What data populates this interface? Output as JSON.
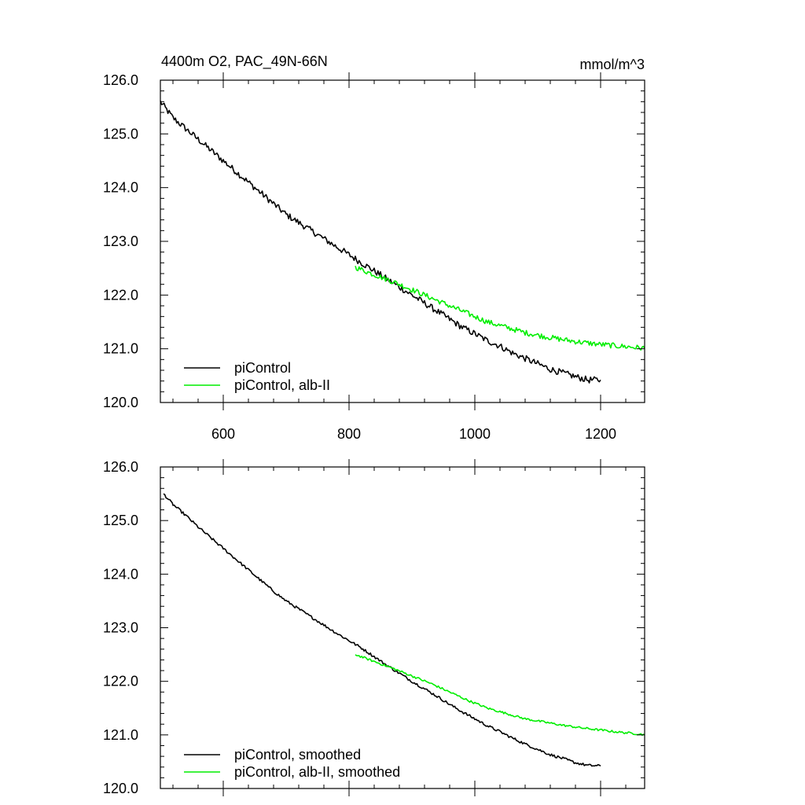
{
  "colors": {
    "piControl": "#000000",
    "alb_II": "#00ee00",
    "background": "#ffffff"
  },
  "chart_data": [
    {
      "type": "line",
      "title": "4400m O2, PAC_49N-66N",
      "units": "mmol/m^3",
      "xlim": [
        500,
        1270
      ],
      "ylim": [
        120.0,
        126.0
      ],
      "xticks": [
        600,
        800,
        1000,
        1200
      ],
      "xtick_labels": [
        "600",
        "800",
        "1000",
        "1200"
      ],
      "yticks": [
        120.0,
        121.0,
        122.0,
        123.0,
        124.0,
        125.0,
        126.0
      ],
      "ytick_labels": [
        "120.0",
        "121.0",
        "122.0",
        "123.0",
        "124.0",
        "125.0",
        "126.0"
      ],
      "legend_position": "bottom-left",
      "series": [
        {
          "name": "piControl",
          "color": "#000000",
          "x": [
            500,
            520,
            540,
            560,
            580,
            600,
            620,
            640,
            660,
            680,
            700,
            720,
            740,
            760,
            780,
            800,
            820,
            840,
            860,
            880,
            900,
            920,
            940,
            960,
            980,
            1000,
            1020,
            1040,
            1060,
            1080,
            1100,
            1120,
            1140,
            1160,
            1180,
            1200
          ],
          "y": [
            125.6,
            125.3,
            125.1,
            124.9,
            124.7,
            124.5,
            124.3,
            124.1,
            123.9,
            123.7,
            123.5,
            123.35,
            123.2,
            123.05,
            122.9,
            122.75,
            122.6,
            122.45,
            122.3,
            122.15,
            122.0,
            121.85,
            121.7,
            121.55,
            121.4,
            121.28,
            121.15,
            121.05,
            120.92,
            120.82,
            120.72,
            120.62,
            120.55,
            120.48,
            120.42,
            120.42
          ],
          "noise_amplitude": 0.06
        },
        {
          "name": "piControl, alb-II",
          "color": "#00ee00",
          "x": [
            810,
            840,
            870,
            900,
            930,
            960,
            990,
            1020,
            1050,
            1080,
            1110,
            1140,
            1170,
            1200,
            1230,
            1260,
            1270
          ],
          "y": [
            122.52,
            122.38,
            122.25,
            122.1,
            121.95,
            121.8,
            121.65,
            121.5,
            121.4,
            121.3,
            121.23,
            121.17,
            121.12,
            121.08,
            121.05,
            121.02,
            121.01
          ],
          "noise_amplitude": 0.05
        }
      ]
    },
    {
      "type": "line",
      "xlim": [
        500,
        1270
      ],
      "ylim": [
        120.0,
        126.0
      ],
      "xticks": [
        600,
        800,
        1000,
        1200
      ],
      "yticks": [
        120.0,
        121.0,
        122.0,
        123.0,
        124.0,
        125.0,
        126.0
      ],
      "ytick_labels": [
        "120.0",
        "121.0",
        "122.0",
        "123.0",
        "124.0",
        "125.0",
        "126.0"
      ],
      "legend_position": "bottom-left",
      "series": [
        {
          "name": "piControl, smoothed",
          "color": "#000000",
          "x": [
            505,
            520,
            540,
            560,
            580,
            600,
            620,
            640,
            660,
            680,
            700,
            720,
            740,
            760,
            780,
            800,
            820,
            840,
            860,
            880,
            900,
            920,
            940,
            960,
            980,
            1000,
            1020,
            1040,
            1060,
            1080,
            1100,
            1120,
            1140,
            1160,
            1180,
            1200
          ],
          "y": [
            125.5,
            125.3,
            125.1,
            124.88,
            124.68,
            124.48,
            124.28,
            124.08,
            123.88,
            123.68,
            123.5,
            123.35,
            123.2,
            123.05,
            122.9,
            122.76,
            122.62,
            122.46,
            122.3,
            122.15,
            122.0,
            121.86,
            121.72,
            121.57,
            121.43,
            121.3,
            121.17,
            121.06,
            120.94,
            120.83,
            120.73,
            120.63,
            120.56,
            120.48,
            120.43,
            120.42
          ],
          "noise_amplitude": 0.025
        },
        {
          "name": "piControl, alb-II, smoothed",
          "color": "#00ee00",
          "x": [
            810,
            840,
            870,
            900,
            930,
            960,
            990,
            1020,
            1050,
            1080,
            1110,
            1140,
            1170,
            1200,
            1230,
            1260,
            1270
          ],
          "y": [
            122.5,
            122.37,
            122.24,
            122.1,
            121.96,
            121.8,
            121.64,
            121.5,
            121.4,
            121.3,
            121.24,
            121.18,
            121.13,
            121.09,
            121.05,
            121.02,
            121.0
          ],
          "noise_amplitude": 0.02
        }
      ]
    }
  ]
}
